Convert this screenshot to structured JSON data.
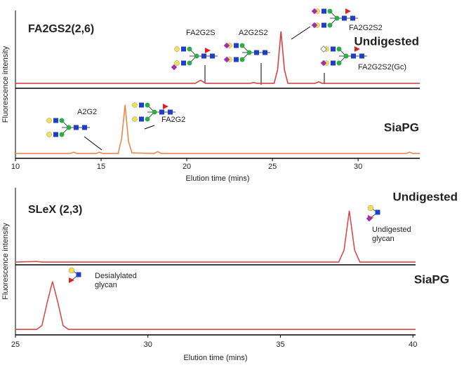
{
  "chart_data": [
    {
      "type": "line",
      "title": "FA2GS2(2,6)",
      "xlabel": "Elution time (mins)",
      "ylabel": "Fluorescence intensity",
      "xlim": [
        10,
        33.6
      ],
      "xticks": [
        10,
        15,
        20,
        25,
        30
      ],
      "ylim": [
        0,
        100
      ],
      "x": [
        10,
        12,
        13.2,
        13.4,
        13.6,
        14.7,
        14.9,
        15.1,
        16.0,
        16.2,
        16.4,
        16.6,
        16.8,
        18.1,
        18.3,
        18.5,
        20.5,
        20.8,
        21.1,
        23.7,
        23.9,
        24.1,
        25.1,
        25.3,
        25.5,
        25.7,
        25.9,
        27.5,
        27.7,
        27.9,
        32.8,
        33.0,
        33.2,
        33.6
      ],
      "series": [
        {
          "name": "Undigested",
          "color": "#d9413e",
          "values": [
            2,
            2,
            2,
            2,
            2,
            2,
            2,
            2,
            2,
            2,
            2,
            2,
            2,
            2,
            2,
            2,
            2,
            6,
            2,
            2,
            3,
            2,
            2,
            20,
            72,
            20,
            2,
            2,
            4,
            2,
            2,
            2,
            2,
            2
          ]
        },
        {
          "name": "SiaPG",
          "color": "#e8894a",
          "values": [
            2,
            2,
            2,
            4,
            2,
            2,
            4,
            2,
            2,
            25,
            76,
            20,
            3,
            2,
            5,
            2,
            2,
            2,
            2,
            2,
            2,
            2,
            2,
            2,
            2,
            2,
            2,
            2,
            2,
            2,
            2,
            4,
            2,
            2
          ]
        }
      ],
      "annotations": [
        {
          "lines": [
            "FA2G2S"
          ]
        },
        {
          "lines": [
            "A2G2S2"
          ]
        },
        {
          "lines": [
            "FA2G2S2"
          ]
        },
        {
          "lines": [
            "FA2G2S2(Gc)"
          ]
        },
        {
          "lines": [
            "A2G2"
          ]
        },
        {
          "lines": [
            "FA2G2"
          ]
        }
      ]
    },
    {
      "type": "line",
      "title": "SLeX (2,3)",
      "xlabel": "Elution time (mins)",
      "ylabel": "Fluorescence intensity",
      "xlim": [
        25,
        40.1
      ],
      "xticks": [
        25,
        30,
        35,
        40
      ],
      "ylim": [
        0,
        100
      ],
      "x": [
        25,
        25.8,
        26.0,
        26.2,
        26.4,
        26.6,
        26.8,
        27.0,
        30.5,
        37.2,
        37.4,
        37.6,
        37.8,
        38.0,
        40.1
      ],
      "series": [
        {
          "name": "Undigested",
          "color": "#d64b4b",
          "values": [
            2,
            3,
            2,
            2,
            2,
            2,
            2,
            2,
            2,
            2,
            20,
            80,
            20,
            2,
            2
          ]
        },
        {
          "name": "SiaPG",
          "color": "#d64b4b",
          "values": [
            2,
            2,
            8,
            45,
            78,
            45,
            8,
            2,
            2,
            2,
            2,
            2,
            2,
            2,
            2
          ]
        }
      ],
      "annotations": [
        {
          "lines": [
            "Undigested",
            "glycan"
          ]
        },
        {
          "lines": [
            "Desialylated",
            "glycan"
          ]
        }
      ]
    }
  ]
}
